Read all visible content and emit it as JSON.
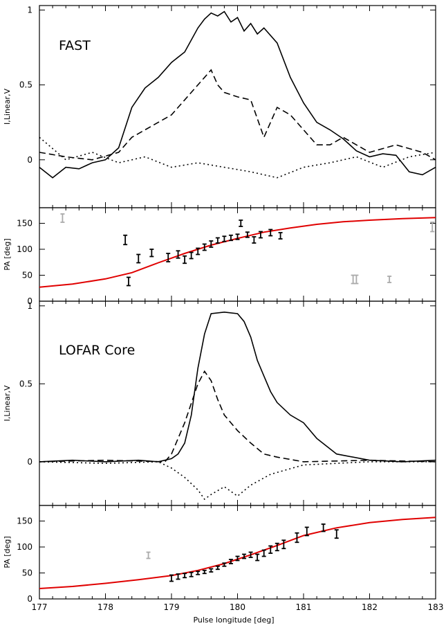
{
  "chart_data": [
    {
      "type": "line",
      "panel": "fast-profile",
      "annotation": "FAST",
      "ylabel": "I,Linear,V",
      "xlim": [
        177,
        183
      ],
      "ylim": [
        -0.32,
        1.03
      ],
      "yticks": [
        0,
        0.5,
        1
      ],
      "yticklabels": [
        "0",
        "0.5",
        "1"
      ],
      "series": [
        {
          "style": "solid",
          "x": [
            177.0,
            177.2,
            177.4,
            177.6,
            177.8,
            178.0,
            178.2,
            178.4,
            178.6,
            178.8,
            179.0,
            179.2,
            179.4,
            179.5,
            179.6,
            179.7,
            179.8,
            179.9,
            180.0,
            180.1,
            180.2,
            180.3,
            180.4,
            180.6,
            180.8,
            181.0,
            181.2,
            181.4,
            181.6,
            181.8,
            182.0,
            182.2,
            182.4,
            182.6,
            182.8,
            183.0
          ],
          "y": [
            -0.05,
            -0.12,
            -0.05,
            -0.06,
            -0.02,
            0.0,
            0.08,
            0.35,
            0.48,
            0.55,
            0.65,
            0.72,
            0.88,
            0.94,
            0.98,
            0.96,
            0.99,
            0.92,
            0.95,
            0.86,
            0.91,
            0.84,
            0.88,
            0.78,
            0.55,
            0.38,
            0.25,
            0.2,
            0.14,
            0.06,
            0.02,
            0.04,
            0.03,
            -0.08,
            -0.1,
            -0.05
          ]
        },
        {
          "style": "dashed",
          "x": [
            177.0,
            177.4,
            177.8,
            178.2,
            178.4,
            178.6,
            178.8,
            179.0,
            179.2,
            179.4,
            179.5,
            179.6,
            179.7,
            179.8,
            180.0,
            180.2,
            180.4,
            180.6,
            180.8,
            181.0,
            181.2,
            181.4,
            181.6,
            181.8,
            182.0,
            182.4,
            182.8,
            183.0
          ],
          "y": [
            0.05,
            0.02,
            0.0,
            0.05,
            0.15,
            0.2,
            0.25,
            0.3,
            0.4,
            0.5,
            0.55,
            0.6,
            0.5,
            0.45,
            0.42,
            0.4,
            0.15,
            0.35,
            0.3,
            0.2,
            0.1,
            0.1,
            0.15,
            0.1,
            0.05,
            0.1,
            0.05,
            0.0
          ]
        },
        {
          "style": "dotted",
          "x": [
            177.0,
            177.4,
            177.8,
            178.2,
            178.6,
            179.0,
            179.4,
            179.8,
            180.2,
            180.6,
            181.0,
            181.4,
            181.8,
            182.2,
            182.6,
            183.0
          ],
          "y": [
            0.15,
            0.0,
            0.05,
            -0.02,
            0.02,
            -0.05,
            -0.02,
            -0.05,
            -0.08,
            -0.12,
            -0.05,
            -0.02,
            0.02,
            -0.05,
            0.02,
            0.05
          ]
        }
      ]
    },
    {
      "type": "scatter",
      "panel": "fast-pa",
      "ylabel": "PA [deg]",
      "xlim": [
        177,
        183
      ],
      "ylim": [
        0,
        180
      ],
      "yticks": [
        0,
        50,
        100,
        150
      ],
      "yticklabels": [
        "0",
        "50",
        "100",
        "150"
      ],
      "fit_curve": {
        "color": "#e00000",
        "x": [
          177.0,
          177.5,
          178.0,
          178.4,
          178.8,
          179.2,
          179.6,
          180.0,
          180.4,
          180.8,
          181.2,
          181.6,
          182.0,
          182.5,
          183.0
        ],
        "y": [
          27,
          33,
          43,
          55,
          74,
          92,
          108,
          121,
          133,
          141,
          148,
          153,
          156,
          159,
          161
        ]
      },
      "points": [
        {
          "x": 177.35,
          "y": 160,
          "err": 8,
          "color": "#aaaaaa"
        },
        {
          "x": 178.3,
          "y": 118,
          "err": 9,
          "color": "#000000"
        },
        {
          "x": 178.35,
          "y": 38,
          "err": 8,
          "color": "#000000"
        },
        {
          "x": 178.5,
          "y": 82,
          "err": 8,
          "color": "#000000"
        },
        {
          "x": 178.7,
          "y": 93,
          "err": 7,
          "color": "#000000"
        },
        {
          "x": 178.95,
          "y": 84,
          "err": 8,
          "color": "#000000"
        },
        {
          "x": 179.1,
          "y": 90,
          "err": 7,
          "color": "#000000"
        },
        {
          "x": 179.2,
          "y": 80,
          "err": 7,
          "color": "#000000"
        },
        {
          "x": 179.3,
          "y": 88,
          "err": 6,
          "color": "#000000"
        },
        {
          "x": 179.4,
          "y": 96,
          "err": 6,
          "color": "#000000"
        },
        {
          "x": 179.5,
          "y": 104,
          "err": 6,
          "color": "#000000"
        },
        {
          "x": 179.6,
          "y": 110,
          "err": 6,
          "color": "#000000"
        },
        {
          "x": 179.7,
          "y": 117,
          "err": 5,
          "color": "#000000"
        },
        {
          "x": 179.8,
          "y": 120,
          "err": 5,
          "color": "#000000"
        },
        {
          "x": 179.9,
          "y": 122,
          "err": 5,
          "color": "#000000"
        },
        {
          "x": 180.0,
          "y": 124,
          "err": 5,
          "color": "#000000"
        },
        {
          "x": 180.05,
          "y": 150,
          "err": 6,
          "color": "#000000"
        },
        {
          "x": 180.15,
          "y": 128,
          "err": 5,
          "color": "#000000"
        },
        {
          "x": 180.25,
          "y": 118,
          "err": 6,
          "color": "#000000"
        },
        {
          "x": 180.35,
          "y": 128,
          "err": 6,
          "color": "#000000"
        },
        {
          "x": 180.5,
          "y": 132,
          "err": 6,
          "color": "#000000"
        },
        {
          "x": 180.65,
          "y": 126,
          "err": 6,
          "color": "#000000"
        },
        {
          "x": 181.75,
          "y": 42,
          "err": 8,
          "color": "#aaaaaa"
        },
        {
          "x": 181.8,
          "y": 42,
          "err": 8,
          "color": "#aaaaaa"
        },
        {
          "x": 182.3,
          "y": 42,
          "err": 6,
          "color": "#aaaaaa"
        },
        {
          "x": 182.95,
          "y": 143,
          "err": 9,
          "color": "#aaaaaa"
        }
      ]
    },
    {
      "type": "line",
      "panel": "lofar-profile",
      "annotation": "LOFAR Core",
      "ylabel": "I,Linear,V",
      "xlim": [
        177,
        183
      ],
      "ylim": [
        -0.28,
        1.03
      ],
      "yticks": [
        0,
        0.5,
        1
      ],
      "yticklabels": [
        "0",
        "0.5",
        "1"
      ],
      "series": [
        {
          "style": "solid",
          "x": [
            177.0,
            177.5,
            178.0,
            178.5,
            178.8,
            179.0,
            179.1,
            179.2,
            179.3,
            179.4,
            179.5,
            179.6,
            179.8,
            180.0,
            180.1,
            180.2,
            180.3,
            180.4,
            180.5,
            180.6,
            180.8,
            181.0,
            181.2,
            181.5,
            182.0,
            182.5,
            183.0
          ],
          "y": [
            0.0,
            0.01,
            0.0,
            0.01,
            0.0,
            0.02,
            0.05,
            0.12,
            0.3,
            0.6,
            0.82,
            0.95,
            0.96,
            0.95,
            0.9,
            0.8,
            0.65,
            0.55,
            0.45,
            0.38,
            0.3,
            0.25,
            0.15,
            0.05,
            0.01,
            0.0,
            0.01
          ]
        },
        {
          "style": "dashed",
          "x": [
            177.0,
            178.0,
            178.9,
            179.0,
            179.2,
            179.4,
            179.5,
            179.6,
            179.7,
            179.8,
            180.0,
            180.2,
            180.4,
            180.6,
            181.0,
            182.0,
            183.0
          ],
          "y": [
            0.0,
            0.01,
            0.0,
            0.05,
            0.25,
            0.5,
            0.58,
            0.52,
            0.4,
            0.3,
            0.2,
            0.12,
            0.05,
            0.03,
            0.0,
            0.01,
            0.0
          ]
        },
        {
          "style": "dotted",
          "x": [
            177.0,
            178.0,
            178.8,
            179.0,
            179.2,
            179.4,
            179.5,
            179.6,
            179.8,
            180.0,
            180.2,
            180.5,
            181.0,
            182.0,
            183.0
          ],
          "y": [
            0.0,
            -0.01,
            0.0,
            -0.04,
            -0.1,
            -0.18,
            -0.24,
            -0.21,
            -0.16,
            -0.22,
            -0.15,
            -0.08,
            -0.02,
            0.0,
            0.0
          ]
        }
      ]
    },
    {
      "type": "scatter",
      "panel": "lofar-pa",
      "ylabel": "PA [deg]",
      "xlabel": "Pulse longitude [deg]",
      "xlim": [
        177,
        183
      ],
      "ylim": [
        0,
        180
      ],
      "xticks": [
        177,
        178,
        179,
        180,
        181,
        182,
        183
      ],
      "xticklabels": [
        "177",
        "178",
        "179",
        "180",
        "181",
        "182",
        "183"
      ],
      "yticks": [
        0,
        50,
        100,
        150
      ],
      "yticklabels": [
        "0",
        "50",
        "100",
        "150"
      ],
      "fit_curve": {
        "color": "#e00000",
        "x": [
          177.0,
          177.5,
          178.0,
          178.5,
          179.0,
          179.4,
          179.8,
          180.2,
          180.6,
          181.0,
          181.5,
          182.0,
          182.5,
          183.0
        ],
        "y": [
          20,
          24,
          30,
          37,
          45,
          55,
          68,
          85,
          103,
          122,
          137,
          147,
          153,
          157
        ]
      },
      "points": [
        {
          "x": 178.65,
          "y": 84,
          "err": 6,
          "color": "#aaaaaa"
        },
        {
          "x": 179.0,
          "y": 40,
          "err": 6,
          "color": "#000000"
        },
        {
          "x": 179.1,
          "y": 43,
          "err": 5,
          "color": "#000000"
        },
        {
          "x": 179.2,
          "y": 45,
          "err": 4,
          "color": "#000000"
        },
        {
          "x": 179.3,
          "y": 47,
          "err": 4,
          "color": "#000000"
        },
        {
          "x": 179.4,
          "y": 50,
          "err": 3,
          "color": "#000000"
        },
        {
          "x": 179.5,
          "y": 52,
          "err": 3,
          "color": "#000000"
        },
        {
          "x": 179.6,
          "y": 55,
          "err": 3,
          "color": "#000000"
        },
        {
          "x": 179.7,
          "y": 60,
          "err": 3,
          "color": "#000000"
        },
        {
          "x": 179.8,
          "y": 66,
          "err": 3,
          "color": "#000000"
        },
        {
          "x": 179.9,
          "y": 72,
          "err": 4,
          "color": "#000000"
        },
        {
          "x": 180.0,
          "y": 78,
          "err": 4,
          "color": "#000000"
        },
        {
          "x": 180.1,
          "y": 82,
          "err": 4,
          "color": "#000000"
        },
        {
          "x": 180.2,
          "y": 85,
          "err": 5,
          "color": "#000000"
        },
        {
          "x": 180.3,
          "y": 80,
          "err": 6,
          "color": "#000000"
        },
        {
          "x": 180.4,
          "y": 88,
          "err": 6,
          "color": "#000000"
        },
        {
          "x": 180.5,
          "y": 95,
          "err": 7,
          "color": "#000000"
        },
        {
          "x": 180.6,
          "y": 100,
          "err": 7,
          "color": "#000000"
        },
        {
          "x": 180.7,
          "y": 105,
          "err": 8,
          "color": "#000000"
        },
        {
          "x": 180.9,
          "y": 118,
          "err": 9,
          "color": "#000000"
        },
        {
          "x": 181.05,
          "y": 130,
          "err": 8,
          "color": "#000000"
        },
        {
          "x": 181.3,
          "y": 137,
          "err": 7,
          "color": "#000000"
        },
        {
          "x": 181.5,
          "y": 125,
          "err": 8,
          "color": "#000000"
        }
      ]
    }
  ]
}
